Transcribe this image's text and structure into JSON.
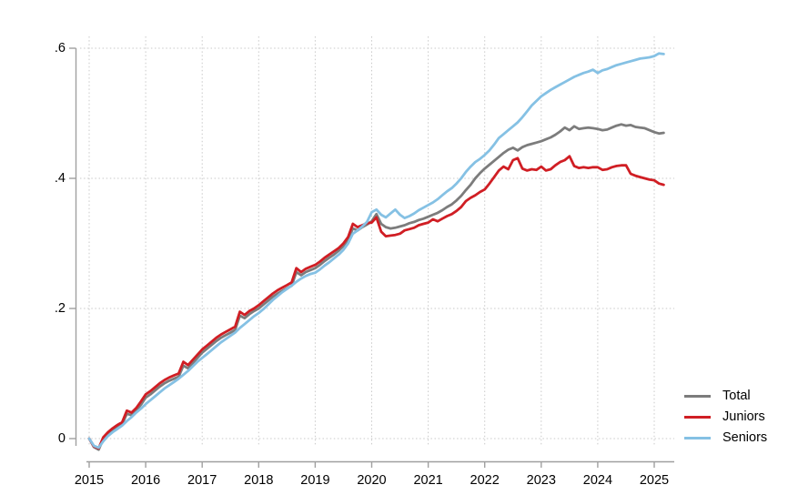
{
  "chart_data": {
    "type": "line",
    "title": "",
    "xlabel": "",
    "ylabel": "",
    "grid": "dotted",
    "legend_position": "bottom-right-outside",
    "x_axis_range": [
      2015,
      2025.17
    ],
    "y_axis_range": [
      0,
      0.6
    ],
    "x_ticks": [
      2015,
      2016,
      2017,
      2018,
      2019,
      2020,
      2021,
      2022,
      2023,
      2024,
      2025
    ],
    "y_ticks": [
      {
        "value": 0.0,
        "label": "0"
      },
      {
        "value": 0.2,
        "label": ".2"
      },
      {
        "value": 0.4,
        "label": ".4"
      },
      {
        "value": 0.6,
        "label": ".6"
      }
    ],
    "x": [
      2015.0,
      2015.083,
      2015.167,
      2015.25,
      2015.333,
      2015.417,
      2015.5,
      2015.583,
      2015.667,
      2015.75,
      2015.833,
      2015.917,
      2016.0,
      2016.083,
      2016.167,
      2016.25,
      2016.333,
      2016.417,
      2016.5,
      2016.583,
      2016.667,
      2016.75,
      2016.833,
      2016.917,
      2017.0,
      2017.083,
      2017.167,
      2017.25,
      2017.333,
      2017.417,
      2017.5,
      2017.583,
      2017.667,
      2017.75,
      2017.833,
      2017.917,
      2018.0,
      2018.083,
      2018.167,
      2018.25,
      2018.333,
      2018.417,
      2018.5,
      2018.583,
      2018.667,
      2018.75,
      2018.833,
      2018.917,
      2019.0,
      2019.083,
      2019.167,
      2019.25,
      2019.333,
      2019.417,
      2019.5,
      2019.583,
      2019.667,
      2019.75,
      2019.833,
      2019.917,
      2020.0,
      2020.083,
      2020.167,
      2020.25,
      2020.333,
      2020.417,
      2020.5,
      2020.583,
      2020.667,
      2020.75,
      2020.833,
      2020.917,
      2021.0,
      2021.083,
      2021.167,
      2021.25,
      2021.333,
      2021.417,
      2021.5,
      2021.583,
      2021.667,
      2021.75,
      2021.833,
      2021.917,
      2022.0,
      2022.083,
      2022.167,
      2022.25,
      2022.333,
      2022.417,
      2022.5,
      2022.583,
      2022.667,
      2022.75,
      2022.833,
      2022.917,
      2023.0,
      2023.083,
      2023.167,
      2023.25,
      2023.333,
      2023.417,
      2023.5,
      2023.583,
      2023.667,
      2023.75,
      2023.833,
      2023.917,
      2024.0,
      2024.083,
      2024.167,
      2024.25,
      2024.333,
      2024.417,
      2024.5,
      2024.583,
      2024.667,
      2024.75,
      2024.833,
      2024.917,
      2025.0,
      2025.083,
      2025.167
    ],
    "series": [
      {
        "name": "Total",
        "color": "#7c7c7c",
        "values": [
          0.0,
          -0.013,
          -0.017,
          -0.001,
          0.007,
          0.013,
          0.018,
          0.022,
          0.038,
          0.036,
          0.043,
          0.052,
          0.063,
          0.068,
          0.074,
          0.08,
          0.085,
          0.089,
          0.092,
          0.095,
          0.112,
          0.108,
          0.116,
          0.124,
          0.132,
          0.138,
          0.144,
          0.15,
          0.155,
          0.159,
          0.163,
          0.167,
          0.189,
          0.185,
          0.191,
          0.196,
          0.2,
          0.206,
          0.212,
          0.218,
          0.223,
          0.227,
          0.231,
          0.235,
          0.256,
          0.251,
          0.256,
          0.259,
          0.262,
          0.267,
          0.273,
          0.278,
          0.283,
          0.289,
          0.296,
          0.306,
          0.323,
          0.32,
          0.325,
          0.329,
          0.334,
          0.345,
          0.33,
          0.325,
          0.323,
          0.324,
          0.326,
          0.328,
          0.331,
          0.333,
          0.336,
          0.338,
          0.341,
          0.344,
          0.347,
          0.351,
          0.356,
          0.36,
          0.366,
          0.373,
          0.382,
          0.39,
          0.4,
          0.408,
          0.415,
          0.421,
          0.427,
          0.433,
          0.439,
          0.444,
          0.447,
          0.443,
          0.448,
          0.451,
          0.453,
          0.455,
          0.457,
          0.46,
          0.463,
          0.467,
          0.472,
          0.478,
          0.474,
          0.48,
          0.476,
          0.477,
          0.478,
          0.477,
          0.476,
          0.474,
          0.475,
          0.478,
          0.481,
          0.483,
          0.481,
          0.482,
          0.479,
          0.478,
          0.477,
          0.474,
          0.471,
          0.469,
          0.47
        ]
      },
      {
        "name": "Juniors",
        "color": "#d01e24",
        "values": [
          0.0,
          -0.012,
          -0.015,
          0.002,
          0.01,
          0.016,
          0.021,
          0.025,
          0.043,
          0.04,
          0.047,
          0.057,
          0.068,
          0.073,
          0.079,
          0.085,
          0.09,
          0.094,
          0.097,
          0.1,
          0.118,
          0.113,
          0.121,
          0.129,
          0.137,
          0.143,
          0.149,
          0.155,
          0.16,
          0.164,
          0.168,
          0.172,
          0.195,
          0.19,
          0.196,
          0.2,
          0.205,
          0.211,
          0.217,
          0.223,
          0.228,
          0.232,
          0.236,
          0.24,
          0.262,
          0.256,
          0.261,
          0.264,
          0.267,
          0.272,
          0.278,
          0.283,
          0.288,
          0.293,
          0.3,
          0.31,
          0.33,
          0.325,
          0.328,
          0.331,
          0.332,
          0.34,
          0.318,
          0.311,
          0.312,
          0.313,
          0.315,
          0.32,
          0.322,
          0.324,
          0.328,
          0.33,
          0.332,
          0.337,
          0.334,
          0.338,
          0.342,
          0.345,
          0.35,
          0.356,
          0.365,
          0.37,
          0.374,
          0.379,
          0.383,
          0.392,
          0.402,
          0.412,
          0.418,
          0.414,
          0.428,
          0.431,
          0.415,
          0.412,
          0.414,
          0.413,
          0.418,
          0.412,
          0.414,
          0.42,
          0.425,
          0.428,
          0.434,
          0.419,
          0.416,
          0.417,
          0.416,
          0.417,
          0.417,
          0.413,
          0.414,
          0.417,
          0.419,
          0.42,
          0.42,
          0.407,
          0.404,
          0.402,
          0.4,
          0.398,
          0.397,
          0.392,
          0.39
        ]
      },
      {
        "name": "Seniors",
        "color": "#85c1e4",
        "values": [
          0.0,
          -0.011,
          -0.014,
          -0.004,
          0.004,
          0.01,
          0.015,
          0.02,
          0.027,
          0.033,
          0.04,
          0.046,
          0.053,
          0.059,
          0.065,
          0.071,
          0.077,
          0.082,
          0.087,
          0.092,
          0.098,
          0.104,
          0.111,
          0.118,
          0.124,
          0.13,
          0.136,
          0.142,
          0.148,
          0.153,
          0.158,
          0.163,
          0.17,
          0.176,
          0.182,
          0.188,
          0.193,
          0.199,
          0.206,
          0.213,
          0.219,
          0.225,
          0.23,
          0.235,
          0.241,
          0.246,
          0.25,
          0.253,
          0.255,
          0.26,
          0.266,
          0.271,
          0.277,
          0.283,
          0.29,
          0.3,
          0.315,
          0.32,
          0.326,
          0.333,
          0.348,
          0.352,
          0.344,
          0.34,
          0.346,
          0.352,
          0.344,
          0.339,
          0.342,
          0.346,
          0.351,
          0.355,
          0.359,
          0.363,
          0.368,
          0.374,
          0.38,
          0.385,
          0.392,
          0.4,
          0.41,
          0.418,
          0.425,
          0.43,
          0.436,
          0.443,
          0.452,
          0.462,
          0.468,
          0.474,
          0.48,
          0.486,
          0.494,
          0.503,
          0.512,
          0.519,
          0.526,
          0.531,
          0.536,
          0.54,
          0.544,
          0.548,
          0.552,
          0.556,
          0.559,
          0.562,
          0.564,
          0.567,
          0.562,
          0.566,
          0.568,
          0.571,
          0.574,
          0.576,
          0.578,
          0.58,
          0.582,
          0.584,
          0.585,
          0.586,
          0.588,
          0.592,
          0.591
        ]
      }
    ]
  },
  "style": {
    "background": "#ffffff",
    "grid_color": "#c9c9c9",
    "axis_color": "#a0a0a0",
    "text_color": "#000000",
    "line_width": 2.8
  }
}
